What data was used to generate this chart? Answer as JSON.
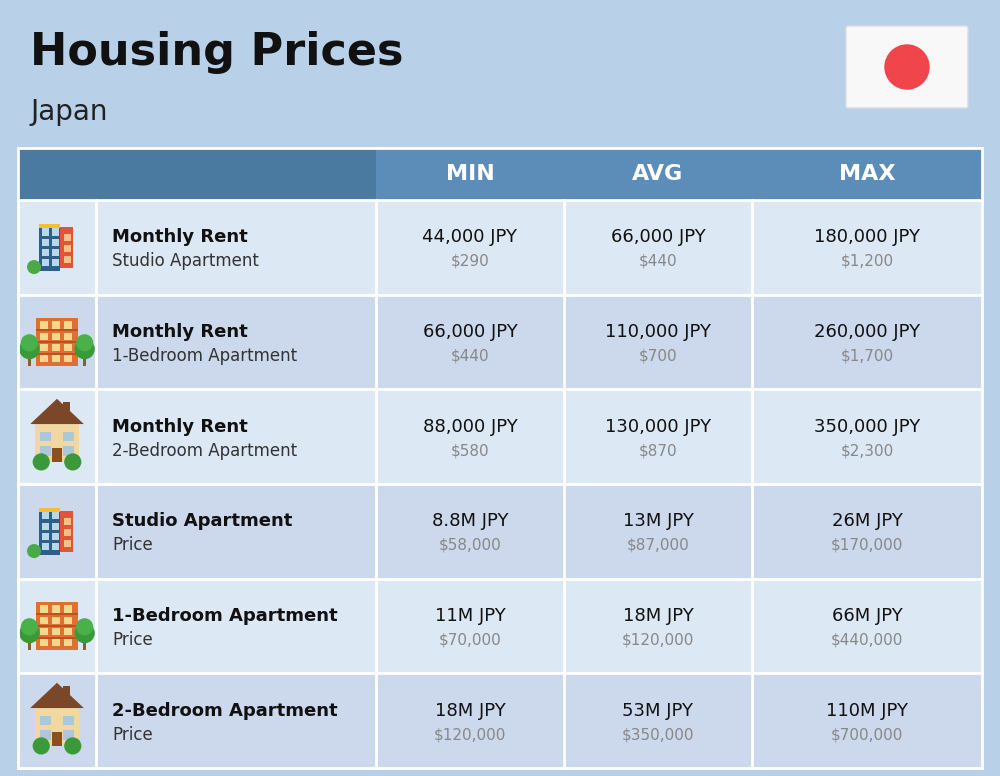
{
  "title": "Housing Prices",
  "subtitle": "Japan",
  "bg_color": "#b8d0e8",
  "header_bg_color": "#5b8db8",
  "header_text_color": "#ffffff",
  "row_colors": [
    "#dce8f4",
    "#ccd8ec"
  ],
  "col_headers": [
    "MIN",
    "AVG",
    "MAX"
  ],
  "rows": [
    {
      "bold_label": "Monthly Rent",
      "sub_label": "Studio Apartment",
      "icon": "blue_office",
      "min_jpy": "44,000 JPY",
      "min_usd": "$290",
      "avg_jpy": "66,000 JPY",
      "avg_usd": "$440",
      "max_jpy": "180,000 JPY",
      "max_usd": "$1,200"
    },
    {
      "bold_label": "Monthly Rent",
      "sub_label": "1-Bedroom Apartment",
      "icon": "orange_apt",
      "min_jpy": "66,000 JPY",
      "min_usd": "$440",
      "avg_jpy": "110,000 JPY",
      "avg_usd": "$700",
      "max_jpy": "260,000 JPY",
      "max_usd": "$1,700"
    },
    {
      "bold_label": "Monthly Rent",
      "sub_label": "2-Bedroom Apartment",
      "icon": "tan_house",
      "min_jpy": "88,000 JPY",
      "min_usd": "$580",
      "avg_jpy": "130,000 JPY",
      "avg_usd": "$870",
      "max_jpy": "350,000 JPY",
      "max_usd": "$2,300"
    },
    {
      "bold_label": "Studio Apartment",
      "sub_label": "Price",
      "icon": "blue_office",
      "min_jpy": "8.8M JPY",
      "min_usd": "$58,000",
      "avg_jpy": "13M JPY",
      "avg_usd": "$87,000",
      "max_jpy": "26M JPY",
      "max_usd": "$170,000"
    },
    {
      "bold_label": "1-Bedroom Apartment",
      "sub_label": "Price",
      "icon": "orange_apt",
      "min_jpy": "11M JPY",
      "min_usd": "$70,000",
      "avg_jpy": "18M JPY",
      "avg_usd": "$120,000",
      "max_jpy": "66M JPY",
      "max_usd": "$440,000"
    },
    {
      "bold_label": "2-Bedroom Apartment",
      "sub_label": "Price",
      "icon": "tan_house",
      "min_jpy": "18M JPY",
      "min_usd": "$120,000",
      "avg_jpy": "53M JPY",
      "avg_usd": "$350,000",
      "max_jpy": "110M JPY",
      "max_usd": "$700,000"
    }
  ]
}
